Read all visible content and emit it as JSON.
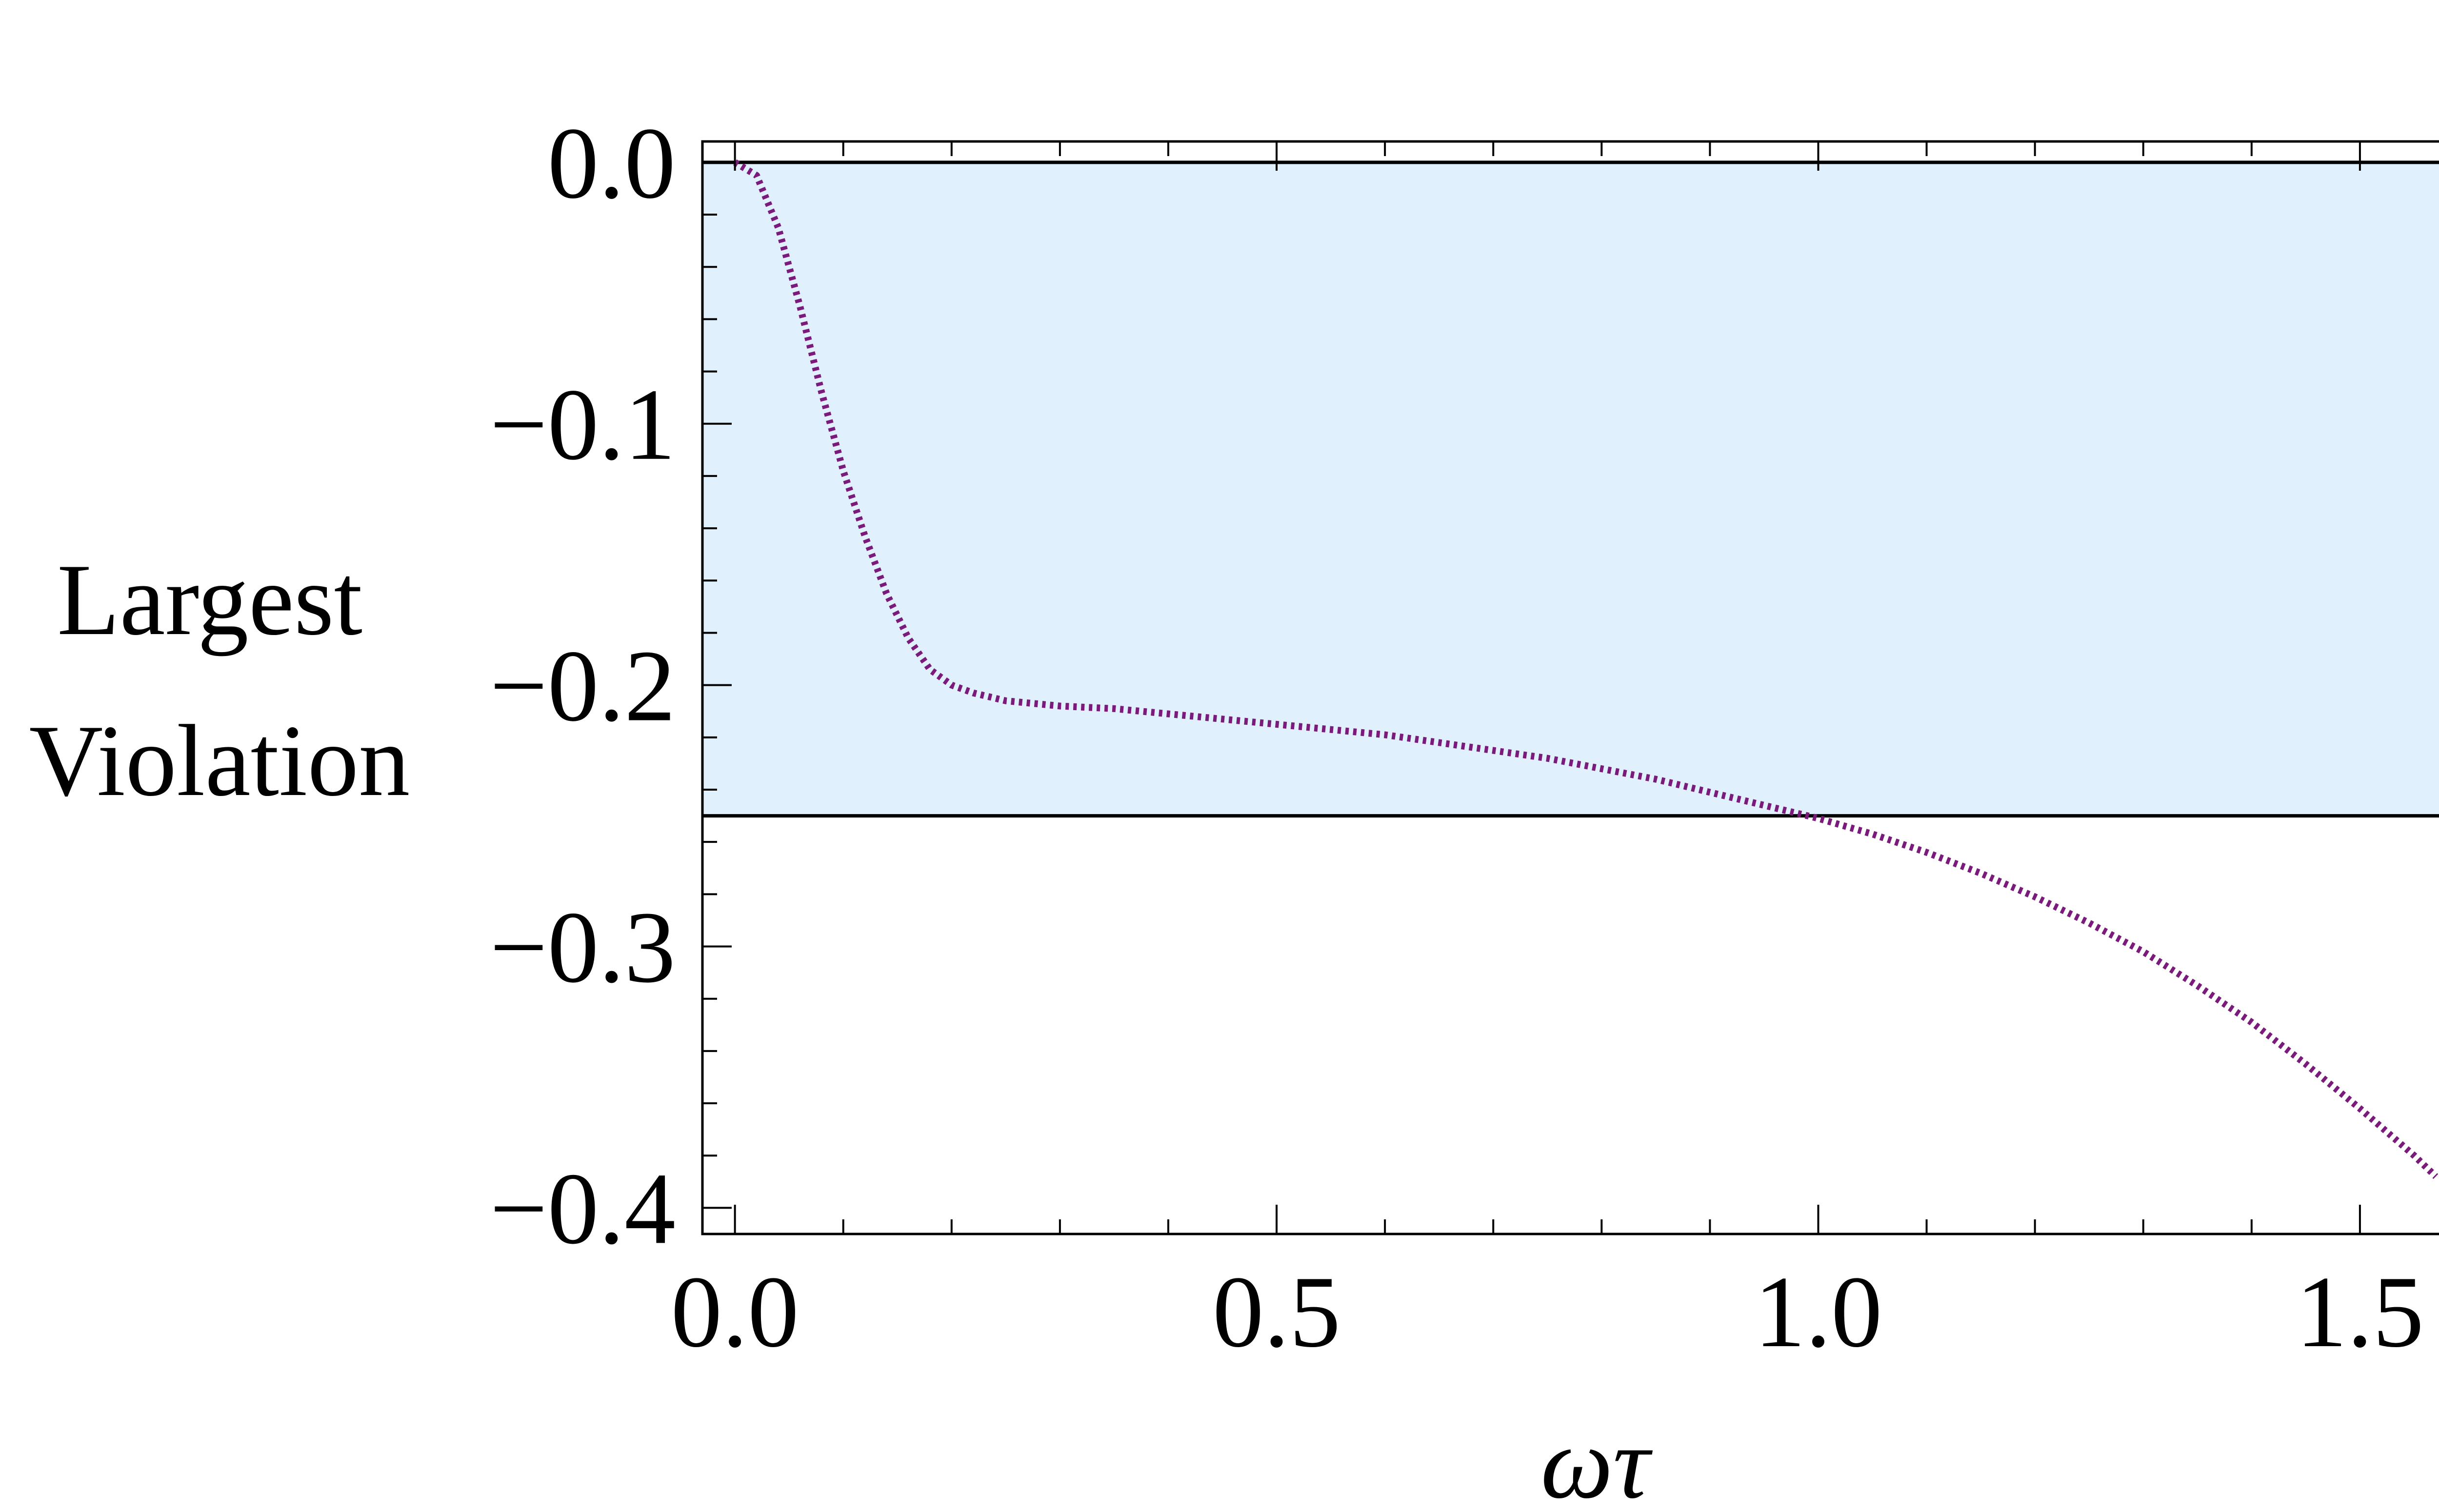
{
  "chart_data": {
    "type": "line",
    "title": "",
    "xlabel": "ωτ",
    "ylabel_lines": [
      "Largest",
      "Violation"
    ],
    "xlim": [
      -0.03,
      1.6
    ],
    "ylim": [
      -0.41,
      0.008
    ],
    "x_ticks": [
      {
        "value": 0.0,
        "label": "0.0"
      },
      {
        "value": 0.5,
        "label": "0.5"
      },
      {
        "value": 1.0,
        "label": "1.0"
      },
      {
        "value": 1.5,
        "label": "1.5"
      }
    ],
    "y_ticks": [
      {
        "value": 0.0,
        "label": "0.0"
      },
      {
        "value": -0.1,
        "label": "−0.1"
      },
      {
        "value": -0.2,
        "label": "−0.2"
      },
      {
        "value": -0.3,
        "label": "−0.3"
      },
      {
        "value": -0.4,
        "label": "−0.4"
      }
    ],
    "x_minor_step": 0.1,
    "y_minor_step": 0.02,
    "shaded_band": {
      "y_from": -0.25,
      "y_to": 0.0,
      "color": "#e0f0fd"
    },
    "reference_lines": [
      0.0,
      -0.25
    ],
    "grid": false,
    "colors": {
      "series": "#7a1a7a",
      "frame": "#000000"
    },
    "series": [
      {
        "line_style": "dotted",
        "x": [
          0.0,
          0.02,
          0.04,
          0.06,
          0.08,
          0.1,
          0.12,
          0.14,
          0.16,
          0.18,
          0.2,
          0.22,
          0.25,
          0.3,
          0.35,
          0.4,
          0.45,
          0.5,
          0.55,
          0.6,
          0.65,
          0.7,
          0.75,
          0.8,
          0.85,
          0.9,
          0.95,
          1.0,
          1.05,
          1.1,
          1.15,
          1.2,
          1.25,
          1.3,
          1.35,
          1.4,
          1.45,
          1.5,
          1.55,
          1.57
        ],
        "y": [
          0.0,
          -0.005,
          -0.025,
          -0.055,
          -0.088,
          -0.118,
          -0.143,
          -0.165,
          -0.182,
          -0.194,
          -0.2,
          -0.203,
          -0.206,
          -0.208,
          -0.209,
          -0.211,
          -0.213,
          -0.215,
          -0.217,
          -0.219,
          -0.222,
          -0.225,
          -0.228,
          -0.232,
          -0.236,
          -0.241,
          -0.246,
          -0.251,
          -0.257,
          -0.264,
          -0.272,
          -0.281,
          -0.291,
          -0.302,
          -0.315,
          -0.329,
          -0.345,
          -0.362,
          -0.38,
          -0.388
        ]
      }
    ]
  }
}
